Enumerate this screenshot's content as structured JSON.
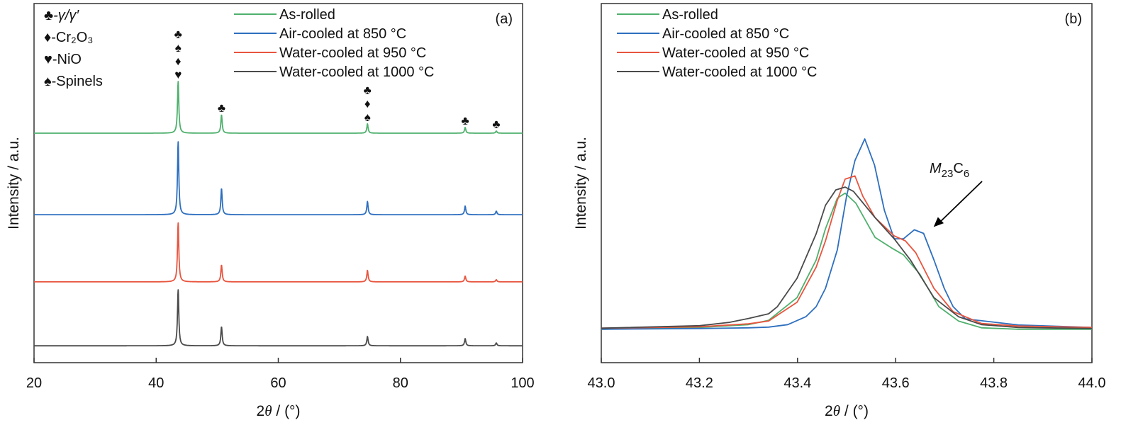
{
  "chart_data": [
    {
      "type": "line",
      "panel_label": "(a)",
      "xlabel": {
        "pre": "2",
        "theta": "θ",
        "post": " / (°)"
      },
      "ylabel": "Intensity / a.u.",
      "xlim": [
        20,
        100
      ],
      "ylim": [
        0,
        100
      ],
      "xticks": [
        20,
        40,
        60,
        80,
        100
      ],
      "grid": false,
      "legend_placement": "top-center",
      "phase_legend": [
        {
          "symbol": "♣",
          "label": "-γ/γ′"
        },
        {
          "symbol": "♦",
          "label": "-Cr₂O₃"
        },
        {
          "symbol": "♥",
          "label": "-NiO"
        },
        {
          "symbol": "♠",
          "label": "-Spinels"
        }
      ],
      "peak_markers": [
        {
          "x": 43.6,
          "symbols": [
            "♣",
            "♠",
            "♦",
            "♥"
          ]
        },
        {
          "x": 50.7,
          "symbols": [
            "♣"
          ]
        },
        {
          "x": 74.6,
          "symbols": [
            "♣",
            "♦",
            "♠"
          ]
        },
        {
          "x": 90.6,
          "symbols": [
            "♣"
          ]
        },
        {
          "x": 95.7,
          "symbols": [
            "♣"
          ]
        }
      ],
      "series": [
        {
          "name": "As-rolled",
          "color": "#4fb06d",
          "baseline": 63.9,
          "peaks": [
            [
              43.6,
              14.4
            ],
            [
              50.7,
              5.1
            ],
            [
              74.6,
              2.6
            ],
            [
              90.6,
              1.6
            ],
            [
              95.7,
              0.6
            ]
          ]
        },
        {
          "name": "Air-cooled at 850 °C",
          "color": "#2e6fbf",
          "baseline": 41.2,
          "peaks": [
            [
              43.6,
              20.3
            ],
            [
              50.7,
              7.3
            ],
            [
              74.6,
              3.7
            ],
            [
              90.6,
              2.4
            ],
            [
              95.7,
              1.0
            ]
          ]
        },
        {
          "name": "Water-cooled at 950 °C",
          "color": "#e8553f",
          "baseline": 22.5,
          "peaks": [
            [
              43.6,
              16.4
            ],
            [
              50.7,
              4.7
            ],
            [
              74.6,
              3.2
            ],
            [
              90.6,
              1.6
            ],
            [
              95.7,
              0.6
            ]
          ]
        },
        {
          "name": "Water-cooled at 1000 °C",
          "color": "#4a4a4a",
          "baseline": 4.7,
          "peaks": [
            [
              43.6,
              15.6
            ],
            [
              50.7,
              5.3
            ],
            [
              74.6,
              2.6
            ],
            [
              90.6,
              2.0
            ],
            [
              95.7,
              0.8
            ]
          ]
        }
      ]
    },
    {
      "type": "line",
      "panel_label": "(b)",
      "xlabel": {
        "pre": "2",
        "theta": "θ",
        "post": " / (°)"
      },
      "ylabel": "Intensity / a.u.",
      "xlim": [
        43.0,
        44.0
      ],
      "ylim": [
        0,
        100
      ],
      "xticks": [
        "43.0",
        "43.2",
        "43.4",
        "43.6",
        "43.8",
        "44.0"
      ],
      "grid": false,
      "legend_placement": "top-left",
      "annotation": {
        "italic": "M",
        "sub1": "23",
        "main": "C",
        "sub2": "6",
        "arrow_to": [
          43.66,
          37
        ]
      },
      "series": [
        {
          "name": "As-rolled",
          "color": "#4fb06d",
          "points": [
            [
              43.0,
              9.3
            ],
            [
              43.2,
              9.8
            ],
            [
              43.3,
              10.6
            ],
            [
              43.341,
              11.8
            ],
            [
              43.399,
              18.1
            ],
            [
              43.438,
              28.6
            ],
            [
              43.457,
              37.3
            ],
            [
              43.481,
              45.8
            ],
            [
              43.497,
              47.2
            ],
            [
              43.519,
              44.4
            ],
            [
              43.558,
              34.9
            ],
            [
              43.591,
              32.0
            ],
            [
              43.616,
              30.0
            ],
            [
              43.649,
              24.7
            ],
            [
              43.688,
              15.6
            ],
            [
              43.728,
              11.6
            ],
            [
              43.775,
              9.7
            ],
            [
              43.85,
              9.3
            ],
            [
              44.0,
              9.3
            ]
          ]
        },
        {
          "name": "Air-cooled at 850 °C",
          "color": "#2e6fbf",
          "points": [
            [
              43.0,
              9.3
            ],
            [
              43.2,
              9.5
            ],
            [
              43.3,
              9.7
            ],
            [
              43.341,
              9.9
            ],
            [
              43.38,
              10.6
            ],
            [
              43.417,
              12.8
            ],
            [
              43.438,
              15.6
            ],
            [
              43.457,
              20.7
            ],
            [
              43.481,
              31.4
            ],
            [
              43.5,
              46.4
            ],
            [
              43.517,
              56.3
            ],
            [
              43.537,
              62.3
            ],
            [
              43.557,
              55.0
            ],
            [
              43.577,
              42.4
            ],
            [
              43.597,
              34.5
            ],
            [
              43.616,
              34.5
            ],
            [
              43.638,
              37.0
            ],
            [
              43.657,
              36.0
            ],
            [
              43.678,
              28.6
            ],
            [
              43.699,
              20.7
            ],
            [
              43.717,
              15.6
            ],
            [
              43.742,
              12.2
            ],
            [
              43.85,
              10.5
            ],
            [
              44.0,
              9.8
            ]
          ]
        },
        {
          "name": "Water-cooled at 950 °C",
          "color": "#e8553f",
          "points": [
            [
              43.0,
              9.6
            ],
            [
              43.2,
              10.0
            ],
            [
              43.3,
              10.8
            ],
            [
              43.341,
              11.6
            ],
            [
              43.399,
              16.8
            ],
            [
              43.438,
              26.6
            ],
            [
              43.457,
              33.9
            ],
            [
              43.481,
              45.2
            ],
            [
              43.497,
              51.1
            ],
            [
              43.517,
              52.0
            ],
            [
              43.533,
              46.4
            ],
            [
              43.558,
              40.4
            ],
            [
              43.597,
              35.3
            ],
            [
              43.62,
              33.9
            ],
            [
              43.641,
              30.6
            ],
            [
              43.678,
              20.7
            ],
            [
              43.717,
              14.2
            ],
            [
              43.775,
              10.9
            ],
            [
              43.85,
              10.2
            ],
            [
              44.0,
              9.8
            ]
          ]
        },
        {
          "name": "Water-cooled at 1000 °C",
          "color": "#4a4a4a",
          "points": [
            [
              43.0,
              9.6
            ],
            [
              43.2,
              10.3
            ],
            [
              43.26,
              11.2
            ],
            [
              43.3,
              12.3
            ],
            [
              43.341,
              13.6
            ],
            [
              43.359,
              15.6
            ],
            [
              43.399,
              23.5
            ],
            [
              43.438,
              35.9
            ],
            [
              43.457,
              43.8
            ],
            [
              43.478,
              48.1
            ],
            [
              43.497,
              48.9
            ],
            [
              43.514,
              47.7
            ],
            [
              43.558,
              40.4
            ],
            [
              43.597,
              34.5
            ],
            [
              43.63,
              28.6
            ],
            [
              43.678,
              18.1
            ],
            [
              43.728,
              12.8
            ],
            [
              43.775,
              10.6
            ],
            [
              43.85,
              9.8
            ],
            [
              44.0,
              9.5
            ]
          ]
        }
      ]
    }
  ]
}
